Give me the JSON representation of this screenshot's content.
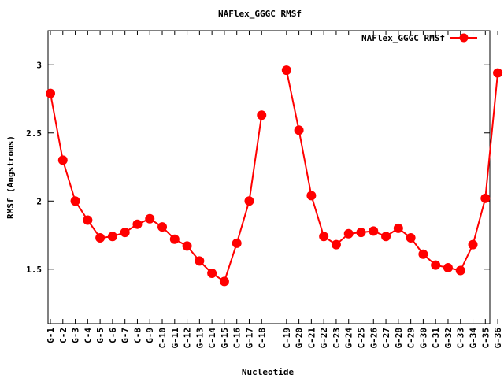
{
  "chart_data": {
    "type": "line",
    "title": "NAFlex_GGGC RMSf",
    "xlabel": "Nucleotide",
    "ylabel": "RMSf (Angstroms)",
    "ylim": [
      1.1,
      3.25
    ],
    "yticks": [
      "1.5",
      "2",
      "2.5",
      "3"
    ],
    "grid": false,
    "legend_position": "top-right",
    "color": "#ff0000",
    "series": [
      {
        "name": "NAFlex_GGGC RMSf",
        "segments": [
          {
            "x": [
              "G-1",
              "C-2",
              "G-3",
              "C-4",
              "G-5",
              "C-6",
              "G-7",
              "C-8",
              "G-9",
              "C-10",
              "G-11",
              "C-12",
              "G-13",
              "C-14",
              "G-15",
              "C-16",
              "G-17",
              "C-18"
            ],
            "values": [
              2.79,
              2.3,
              2.0,
              1.86,
              1.73,
              1.74,
              1.77,
              1.83,
              1.87,
              1.81,
              1.72,
              1.67,
              1.56,
              1.47,
              1.41,
              1.69,
              2.0,
              2.63
            ]
          },
          {
            "x": [
              "C-19",
              "G-20",
              "C-21",
              "G-22",
              "C-23",
              "G-24",
              "C-25",
              "G-26",
              "C-27",
              "G-28",
              "C-29",
              "G-30",
              "C-31",
              "G-32",
              "C-33",
              "G-34",
              "C-35",
              "G-36"
            ],
            "values": [
              2.96,
              2.52,
              2.04,
              1.74,
              1.68,
              1.76,
              1.77,
              1.78,
              1.74,
              1.8,
              1.73,
              1.61,
              1.53,
              1.51,
              1.49,
              1.68,
              2.02,
              2.94
            ]
          }
        ]
      }
    ]
  }
}
